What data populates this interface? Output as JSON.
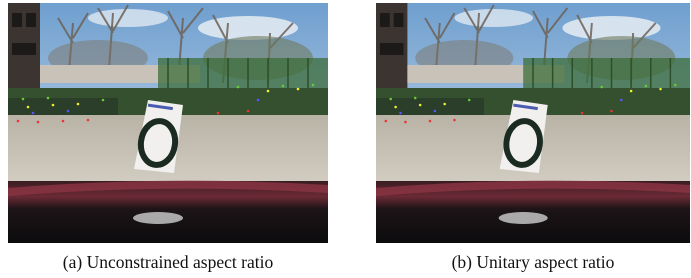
{
  "figure": {
    "subfigures": [
      {
        "caption": "(a) Unconstrained aspect ratio"
      },
      {
        "caption": "(b) Unitary aspect ratio"
      }
    ]
  }
}
